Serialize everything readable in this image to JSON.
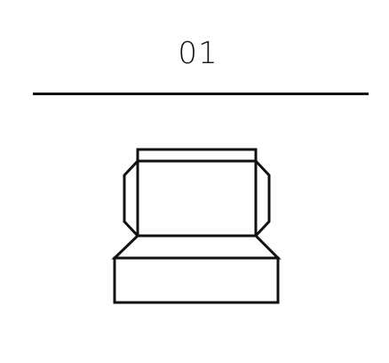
{
  "step": {
    "number": "01"
  },
  "illustration": {
    "icon": "sofa-side-view-outline-icon",
    "stroke_color": "#111111",
    "fill_color": "#ffffff"
  }
}
